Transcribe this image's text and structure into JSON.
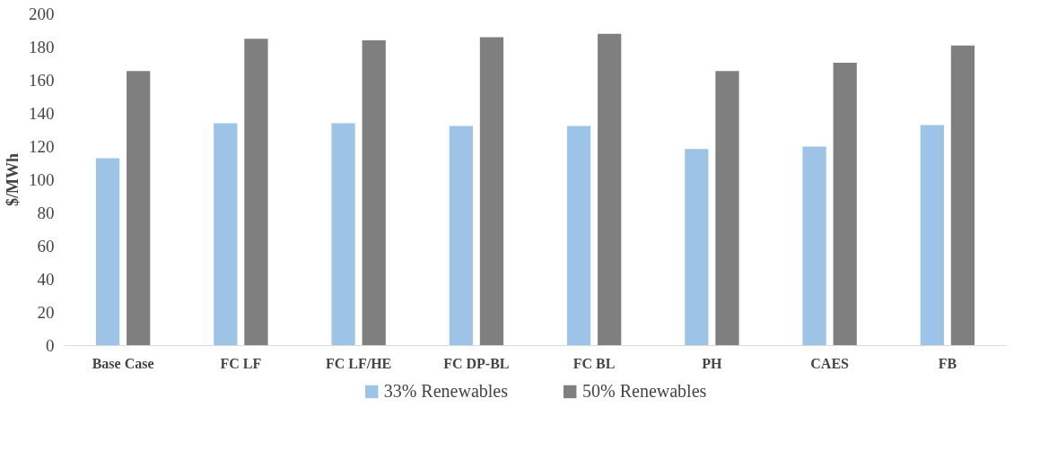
{
  "chart_data": {
    "type": "bar",
    "ylabel": "$/MWh",
    "categories": [
      "Base Case",
      "FC LF",
      "FC LF/HE",
      "FC DP-BL",
      "FC BL",
      "PH",
      "CAES",
      "FB"
    ],
    "series": [
      {
        "name": "33% Renewables",
        "color": "#9dc3e6",
        "values": [
          113,
          134,
          134,
          132.5,
          132.5,
          118.5,
          120,
          133
        ]
      },
      {
        "name": "50% Renewables",
        "color": "#7f7f7f",
        "values": [
          165.5,
          185,
          184,
          186,
          188,
          165.5,
          170.5,
          181
        ]
      }
    ],
    "ylim": [
      0,
      200
    ],
    "yticks": [
      0,
      20,
      40,
      60,
      80,
      100,
      120,
      140,
      160,
      180,
      200
    ],
    "grid": false,
    "legend": "bottom"
  }
}
